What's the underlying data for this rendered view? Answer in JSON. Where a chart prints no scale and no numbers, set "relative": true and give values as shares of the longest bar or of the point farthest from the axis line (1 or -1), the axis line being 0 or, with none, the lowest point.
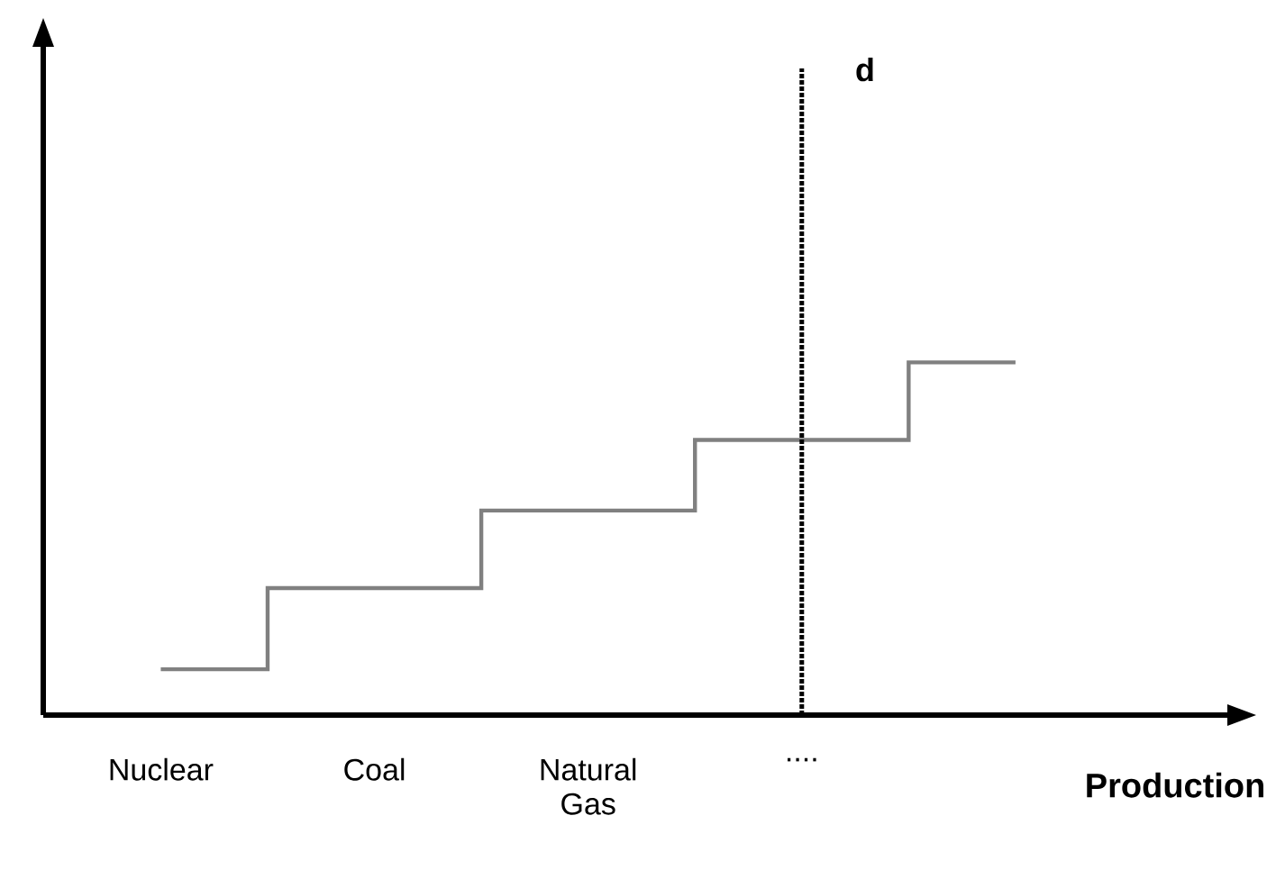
{
  "chart_data": {
    "type": "step",
    "relative": true,
    "xlabel": "Production",
    "color": "#808080",
    "categories": [
      "Nuclear",
      "Coal",
      "Natural Gas",
      "....",
      null
    ],
    "values": [
      0.13,
      0.36,
      0.58,
      0.78,
      1.0
    ],
    "ref_lines": [
      {
        "axis": "x",
        "value": "....",
        "label": "d",
        "color": "#000000",
        "line_style": "dotted"
      }
    ],
    "grid": false,
    "legend": false
  }
}
